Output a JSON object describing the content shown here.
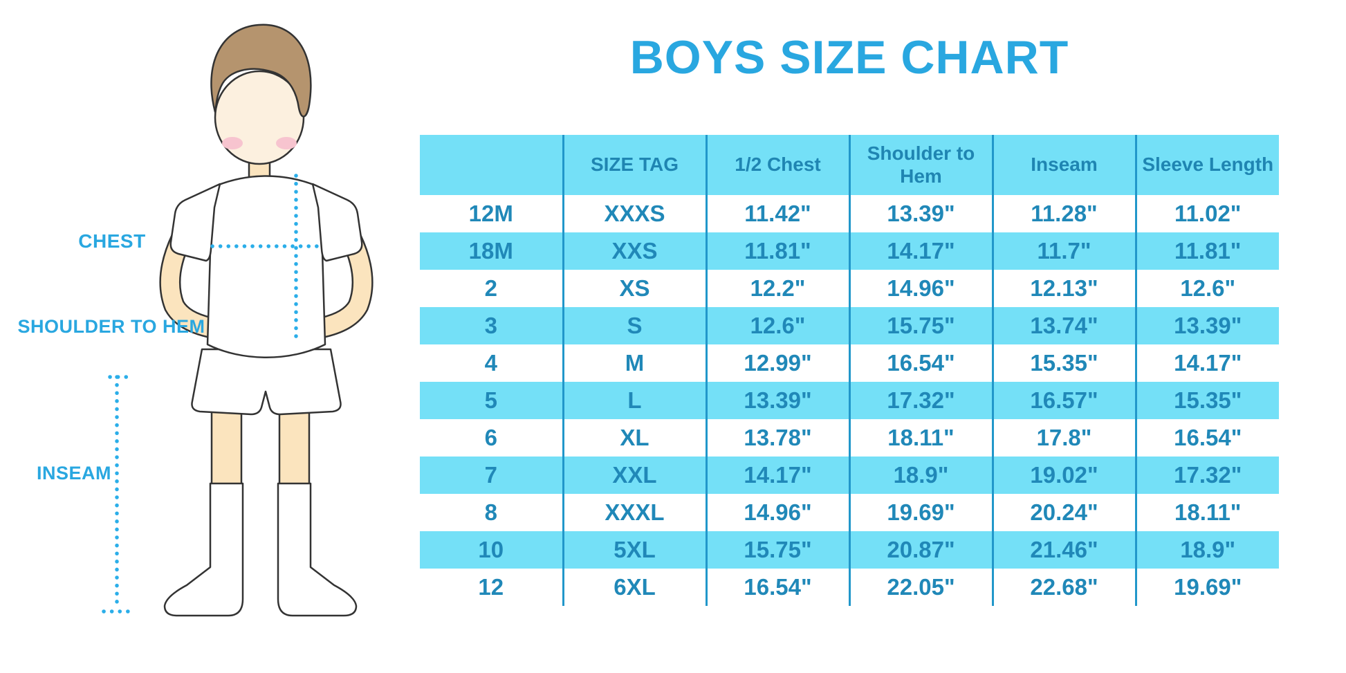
{
  "title": {
    "text": "BOYS SIZE CHART",
    "color": "#29A7E0"
  },
  "diagram": {
    "chest_label": "CHEST",
    "shoulder_to_hem_label": "SHOULDER TO HEM",
    "inseam_label": "INSEAM",
    "colors": {
      "label_text": "#29A7E0",
      "dotted_line": "#2BAEE9",
      "skin": "#FBE4BE",
      "face": "#FCF0DF",
      "hair": "#B5946E",
      "blush": "#F7C4CF",
      "outline": "#333333",
      "clothing": "#FFFFFF"
    }
  },
  "chart_data": {
    "type": "table",
    "title": "BOYS SIZE CHART",
    "columns": [
      "",
      "SIZE TAG",
      "1/2 Chest",
      "Shoulder to Hem",
      "Inseam",
      "Sleeve Length"
    ],
    "rows": [
      [
        "12M",
        "XXXS",
        "11.42\"",
        "13.39\"",
        "11.28\"",
        "11.02\""
      ],
      [
        "18M",
        "XXS",
        "11.81\"",
        "14.17\"",
        "11.7\"",
        "11.81\""
      ],
      [
        "2",
        "XS",
        "12.2\"",
        "14.96\"",
        "12.13\"",
        "12.6\""
      ],
      [
        "3",
        "S",
        "12.6\"",
        "15.75\"",
        "13.74\"",
        "13.39\""
      ],
      [
        "4",
        "M",
        "12.99\"",
        "16.54\"",
        "15.35\"",
        "14.17\""
      ],
      [
        "5",
        "L",
        "13.39\"",
        "17.32\"",
        "16.57\"",
        "15.35\""
      ],
      [
        "6",
        "XL",
        "13.78\"",
        "18.11\"",
        "17.8\"",
        "16.54\""
      ],
      [
        "7",
        "XXL",
        "14.17\"",
        "18.9\"",
        "19.02\"",
        "17.32\""
      ],
      [
        "8",
        "XXXL",
        "14.96\"",
        "19.69\"",
        "20.24\"",
        "18.11\""
      ],
      [
        "10",
        "5XL",
        "15.75\"",
        "20.87\"",
        "21.46\"",
        "18.9\""
      ],
      [
        "12",
        "6XL",
        "16.54\"",
        "22.05\"",
        "22.68\"",
        "19.69\""
      ]
    ],
    "style": {
      "band_color": "#74E0F7",
      "text_color": "#1F87B6",
      "divider_color": "#2197CA",
      "header_background": "#74E0F7",
      "row_alternation": "white / cyan starting with white"
    }
  }
}
